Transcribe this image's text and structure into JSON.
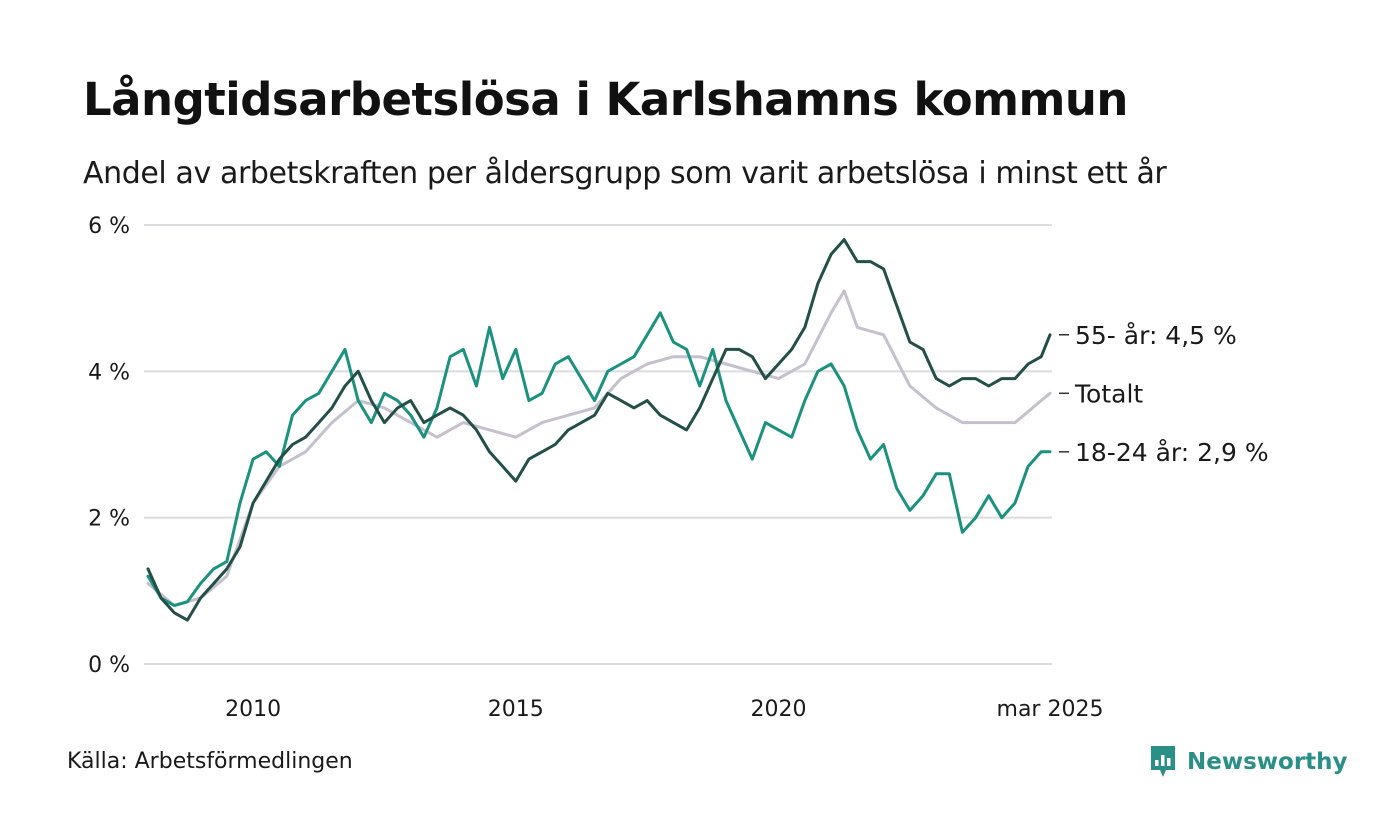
{
  "title": "Långtidsarbetslösa i Karlshamns kommun",
  "subtitle": "Andel av arbetskraften per åldersgrupp som varit arbetslösa i minst ett år",
  "source": "Källa: Arbetsförmedlingen",
  "brand": {
    "name": "Newsworthy",
    "color": "#2a8f86",
    "icon": "bar-chart-bubble-icon"
  },
  "chart_data": {
    "type": "line",
    "grid": "horizontal",
    "ylim": [
      0,
      6
    ],
    "xlim": [
      "2008-01",
      "2025-03"
    ],
    "y_ticks": [
      0,
      2,
      4,
      6
    ],
    "y_tick_labels": [
      "0 %",
      "2 %",
      "4 %",
      "6 %"
    ],
    "x_ticks": [
      "2010-01",
      "2015-01",
      "2020-01",
      "2025-03"
    ],
    "x_tick_labels": [
      "2010",
      "2015",
      "2020",
      "mar 2025"
    ],
    "series": [
      {
        "name": "Totalt",
        "end_label": "Totalt",
        "color": "#c4c0ce",
        "points": [
          [
            "2008-01",
            1.1
          ],
          [
            "2008-07",
            0.8
          ],
          [
            "2009-01",
            0.9
          ],
          [
            "2009-07",
            1.2
          ],
          [
            "2010-01",
            2.2
          ],
          [
            "2010-07",
            2.7
          ],
          [
            "2011-01",
            2.9
          ],
          [
            "2011-07",
            3.3
          ],
          [
            "2012-01",
            3.6
          ],
          [
            "2012-07",
            3.5
          ],
          [
            "2013-01",
            3.3
          ],
          [
            "2013-07",
            3.1
          ],
          [
            "2014-01",
            3.3
          ],
          [
            "2014-07",
            3.2
          ],
          [
            "2015-01",
            3.1
          ],
          [
            "2015-07",
            3.3
          ],
          [
            "2016-01",
            3.4
          ],
          [
            "2016-07",
            3.5
          ],
          [
            "2017-01",
            3.9
          ],
          [
            "2017-07",
            4.1
          ],
          [
            "2018-01",
            4.2
          ],
          [
            "2018-07",
            4.2
          ],
          [
            "2019-01",
            4.1
          ],
          [
            "2019-07",
            4.0
          ],
          [
            "2020-01",
            3.9
          ],
          [
            "2020-07",
            4.1
          ],
          [
            "2021-01",
            4.8
          ],
          [
            "2021-04",
            5.1
          ],
          [
            "2021-07",
            4.6
          ],
          [
            "2022-01",
            4.5
          ],
          [
            "2022-07",
            3.8
          ],
          [
            "2023-01",
            3.5
          ],
          [
            "2023-07",
            3.3
          ],
          [
            "2024-01",
            3.3
          ],
          [
            "2024-07",
            3.3
          ],
          [
            "2025-01",
            3.6
          ],
          [
            "2025-03",
            3.7
          ]
        ]
      },
      {
        "name": "18-24 år",
        "end_label": "18-24 år: 2,9 %",
        "color": "#1b9180",
        "points": [
          [
            "2008-01",
            1.2
          ],
          [
            "2008-04",
            0.9
          ],
          [
            "2008-07",
            0.8
          ],
          [
            "2008-10",
            0.85
          ],
          [
            "2009-01",
            1.1
          ],
          [
            "2009-04",
            1.3
          ],
          [
            "2009-07",
            1.4
          ],
          [
            "2009-10",
            2.2
          ],
          [
            "2010-01",
            2.8
          ],
          [
            "2010-04",
            2.9
          ],
          [
            "2010-07",
            2.7
          ],
          [
            "2010-10",
            3.4
          ],
          [
            "2011-01",
            3.6
          ],
          [
            "2011-04",
            3.7
          ],
          [
            "2011-07",
            4.0
          ],
          [
            "2011-10",
            4.3
          ],
          [
            "2012-01",
            3.6
          ],
          [
            "2012-04",
            3.3
          ],
          [
            "2012-07",
            3.7
          ],
          [
            "2012-10",
            3.6
          ],
          [
            "2013-01",
            3.4
          ],
          [
            "2013-04",
            3.1
          ],
          [
            "2013-07",
            3.5
          ],
          [
            "2013-10",
            4.2
          ],
          [
            "2014-01",
            4.3
          ],
          [
            "2014-04",
            3.8
          ],
          [
            "2014-07",
            4.6
          ],
          [
            "2014-10",
            3.9
          ],
          [
            "2015-01",
            4.3
          ],
          [
            "2015-04",
            3.6
          ],
          [
            "2015-07",
            3.7
          ],
          [
            "2015-10",
            4.1
          ],
          [
            "2016-01",
            4.2
          ],
          [
            "2016-04",
            3.9
          ],
          [
            "2016-07",
            3.6
          ],
          [
            "2016-10",
            4.0
          ],
          [
            "2017-01",
            4.1
          ],
          [
            "2017-04",
            4.2
          ],
          [
            "2017-07",
            4.5
          ],
          [
            "2017-10",
            4.8
          ],
          [
            "2018-01",
            4.4
          ],
          [
            "2018-04",
            4.3
          ],
          [
            "2018-07",
            3.8
          ],
          [
            "2018-10",
            4.3
          ],
          [
            "2019-01",
            3.6
          ],
          [
            "2019-04",
            3.2
          ],
          [
            "2019-07",
            2.8
          ],
          [
            "2019-10",
            3.3
          ],
          [
            "2020-01",
            3.2
          ],
          [
            "2020-04",
            3.1
          ],
          [
            "2020-07",
            3.6
          ],
          [
            "2020-10",
            4.0
          ],
          [
            "2021-01",
            4.1
          ],
          [
            "2021-04",
            3.8
          ],
          [
            "2021-07",
            3.2
          ],
          [
            "2021-10",
            2.8
          ],
          [
            "2022-01",
            3.0
          ],
          [
            "2022-04",
            2.4
          ],
          [
            "2022-07",
            2.1
          ],
          [
            "2022-10",
            2.3
          ],
          [
            "2023-01",
            2.6
          ],
          [
            "2023-04",
            2.6
          ],
          [
            "2023-07",
            1.8
          ],
          [
            "2023-10",
            2.0
          ],
          [
            "2024-01",
            2.3
          ],
          [
            "2024-04",
            2.0
          ],
          [
            "2024-07",
            2.2
          ],
          [
            "2024-10",
            2.7
          ],
          [
            "2025-01",
            2.9
          ],
          [
            "2025-03",
            2.9
          ]
        ]
      },
      {
        "name": "55- år",
        "end_label": "55- år: 4,5 %",
        "color": "#234f48",
        "points": [
          [
            "2008-01",
            1.3
          ],
          [
            "2008-04",
            0.9
          ],
          [
            "2008-07",
            0.7
          ],
          [
            "2008-10",
            0.6
          ],
          [
            "2009-01",
            0.9
          ],
          [
            "2009-04",
            1.1
          ],
          [
            "2009-07",
            1.3
          ],
          [
            "2009-10",
            1.6
          ],
          [
            "2010-01",
            2.2
          ],
          [
            "2010-04",
            2.5
          ],
          [
            "2010-07",
            2.8
          ],
          [
            "2010-10",
            3.0
          ],
          [
            "2011-01",
            3.1
          ],
          [
            "2011-04",
            3.3
          ],
          [
            "2011-07",
            3.5
          ],
          [
            "2011-10",
            3.8
          ],
          [
            "2012-01",
            4.0
          ],
          [
            "2012-04",
            3.6
          ],
          [
            "2012-07",
            3.3
          ],
          [
            "2012-10",
            3.5
          ],
          [
            "2013-01",
            3.6
          ],
          [
            "2013-04",
            3.3
          ],
          [
            "2013-07",
            3.4
          ],
          [
            "2013-10",
            3.5
          ],
          [
            "2014-01",
            3.4
          ],
          [
            "2014-04",
            3.2
          ],
          [
            "2014-07",
            2.9
          ],
          [
            "2014-10",
            2.7
          ],
          [
            "2015-01",
            2.5
          ],
          [
            "2015-04",
            2.8
          ],
          [
            "2015-07",
            2.9
          ],
          [
            "2015-10",
            3.0
          ],
          [
            "2016-01",
            3.2
          ],
          [
            "2016-04",
            3.3
          ],
          [
            "2016-07",
            3.4
          ],
          [
            "2016-10",
            3.7
          ],
          [
            "2017-01",
            3.6
          ],
          [
            "2017-04",
            3.5
          ],
          [
            "2017-07",
            3.6
          ],
          [
            "2017-10",
            3.4
          ],
          [
            "2018-01",
            3.3
          ],
          [
            "2018-04",
            3.2
          ],
          [
            "2018-07",
            3.5
          ],
          [
            "2018-10",
            3.9
          ],
          [
            "2019-01",
            4.3
          ],
          [
            "2019-04",
            4.3
          ],
          [
            "2019-07",
            4.2
          ],
          [
            "2019-10",
            3.9
          ],
          [
            "2020-01",
            4.1
          ],
          [
            "2020-04",
            4.3
          ],
          [
            "2020-07",
            4.6
          ],
          [
            "2020-10",
            5.2
          ],
          [
            "2021-01",
            5.6
          ],
          [
            "2021-04",
            5.8
          ],
          [
            "2021-07",
            5.5
          ],
          [
            "2021-10",
            5.5
          ],
          [
            "2022-01",
            5.4
          ],
          [
            "2022-04",
            4.9
          ],
          [
            "2022-07",
            4.4
          ],
          [
            "2022-10",
            4.3
          ],
          [
            "2023-01",
            3.9
          ],
          [
            "2023-04",
            3.8
          ],
          [
            "2023-07",
            3.9
          ],
          [
            "2023-10",
            3.9
          ],
          [
            "2024-01",
            3.8
          ],
          [
            "2024-04",
            3.9
          ],
          [
            "2024-07",
            3.9
          ],
          [
            "2024-10",
            4.1
          ],
          [
            "2025-01",
            4.2
          ],
          [
            "2025-03",
            4.5
          ]
        ]
      }
    ]
  }
}
